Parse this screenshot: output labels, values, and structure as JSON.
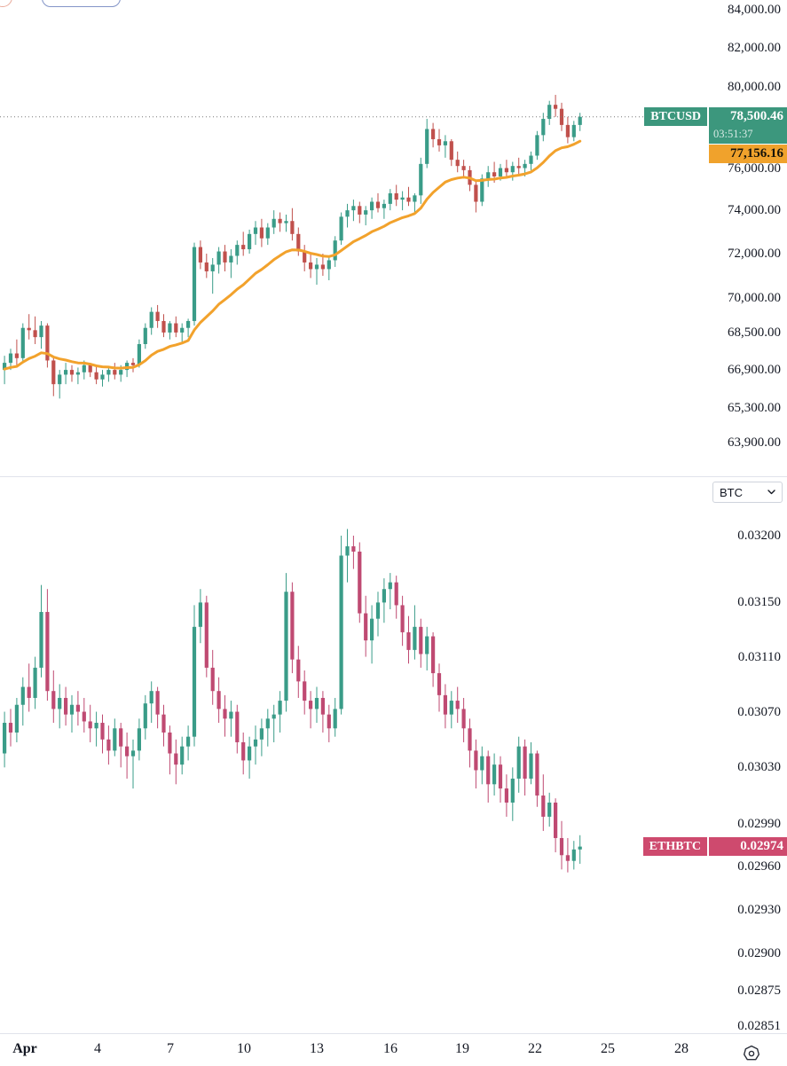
{
  "price_scale_unit_dropdown": {
    "value": "BTC"
  },
  "x_axis": {
    "ticks": [
      {
        "label": "Apr",
        "bold": true
      },
      {
        "label": "4"
      },
      {
        "label": "7"
      },
      {
        "label": "10"
      },
      {
        "label": "13"
      },
      {
        "label": "16"
      },
      {
        "label": "19"
      },
      {
        "label": "22"
      },
      {
        "label": "25"
      },
      {
        "label": "28"
      }
    ]
  },
  "chart_data": [
    {
      "type": "candlestick",
      "symbol": "BTCUSD",
      "panel": "top",
      "scale": "log",
      "last_price": "78,500.46",
      "countdown": "03:51:37",
      "ma_label": "77,156.16",
      "up_color": "#3a9c88",
      "down_color": "#c0504c",
      "ma_color": "#f2a22c",
      "badge_color": "#3c977d",
      "ma_badge_color": "#f0a22c",
      "grid": false,
      "legend_position": "none",
      "y_ticks": [
        {
          "label": "84,000.00",
          "value": 84000
        },
        {
          "label": "82,000.00",
          "value": 82000
        },
        {
          "label": "80,000.00",
          "value": 80000
        },
        {
          "label": "76,000.00",
          "value": 76000
        },
        {
          "label": "74,000.00",
          "value": 74000
        },
        {
          "label": "72,000.00",
          "value": 72000
        },
        {
          "label": "70,000.00",
          "value": 70000
        },
        {
          "label": "68,500.00",
          "value": 68500
        },
        {
          "label": "66,900.00",
          "value": 66900
        },
        {
          "label": "65,300.00",
          "value": 65300
        },
        {
          "label": "63,900.00",
          "value": 63900
        }
      ],
      "first_open": 66900,
      "bars_format": [
        "high",
        "low",
        "close"
      ],
      "bars": [
        [
          67500,
          66300,
          67200
        ],
        [
          67800,
          66900,
          67600
        ],
        [
          68200,
          67100,
          67400
        ],
        [
          68900,
          67200,
          68700
        ],
        [
          69300,
          68200,
          68600
        ],
        [
          69200,
          68000,
          68300
        ],
        [
          69000,
          67800,
          68800
        ],
        [
          68900,
          67000,
          67300
        ],
        [
          67400,
          65800,
          66300
        ],
        [
          66900,
          65700,
          66700
        ],
        [
          67200,
          66300,
          66900
        ],
        [
          67100,
          66400,
          66700
        ],
        [
          67000,
          66300,
          66800
        ],
        [
          67300,
          66500,
          67100
        ],
        [
          67200,
          66600,
          66800
        ],
        [
          67100,
          66300,
          66500
        ],
        [
          66900,
          66200,
          66700
        ],
        [
          67000,
          66400,
          66900
        ],
        [
          67200,
          66500,
          66700
        ],
        [
          67100,
          66400,
          66900
        ],
        [
          67300,
          66600,
          67200
        ],
        [
          67400,
          66800,
          67100
        ],
        [
          68200,
          67000,
          68000
        ],
        [
          68900,
          67800,
          68700
        ],
        [
          69600,
          68400,
          69400
        ],
        [
          69700,
          68700,
          69000
        ],
        [
          69300,
          68300,
          68500
        ],
        [
          69000,
          68200,
          68900
        ],
        [
          69200,
          68300,
          68500
        ],
        [
          68900,
          68100,
          68700
        ],
        [
          69100,
          68300,
          69000
        ],
        [
          72500,
          68800,
          72300
        ],
        [
          72600,
          71300,
          71600
        ],
        [
          72000,
          70900,
          71200
        ],
        [
          71800,
          70200,
          71500
        ],
        [
          72300,
          71100,
          72100
        ],
        [
          72400,
          71200,
          71600
        ],
        [
          72200,
          70900,
          71900
        ],
        [
          72600,
          71500,
          72400
        ],
        [
          73000,
          71900,
          72200
        ],
        [
          73100,
          72000,
          72900
        ],
        [
          73500,
          72400,
          73200
        ],
        [
          73600,
          72300,
          72700
        ],
        [
          73400,
          72400,
          73200
        ],
        [
          74000,
          72900,
          73600
        ],
        [
          73900,
          73000,
          73400
        ],
        [
          73800,
          73000,
          73500
        ],
        [
          74100,
          72600,
          72900
        ],
        [
          73200,
          71900,
          72100
        ],
        [
          72400,
          71200,
          71600
        ],
        [
          72000,
          70900,
          71300
        ],
        [
          71800,
          70600,
          71500
        ],
        [
          72000,
          71000,
          71300
        ],
        [
          71900,
          70800,
          71700
        ],
        [
          72800,
          71400,
          72600
        ],
        [
          73900,
          72400,
          73700
        ],
        [
          74300,
          73200,
          74000
        ],
        [
          74500,
          73500,
          74200
        ],
        [
          74400,
          73400,
          73800
        ],
        [
          74200,
          73300,
          74000
        ],
        [
          74600,
          73600,
          74400
        ],
        [
          74800,
          73900,
          74100
        ],
        [
          74500,
          73600,
          74300
        ],
        [
          75000,
          74000,
          74800
        ],
        [
          75200,
          74200,
          74500
        ],
        [
          74900,
          74000,
          74600
        ],
        [
          75100,
          74200,
          74400
        ],
        [
          74800,
          73900,
          74700
        ],
        [
          76500,
          74300,
          76200
        ],
        [
          78400,
          76000,
          77900
        ],
        [
          78200,
          77000,
          77400
        ],
        [
          77900,
          76800,
          77100
        ],
        [
          77600,
          76500,
          77300
        ],
        [
          77400,
          76100,
          76400
        ],
        [
          76800,
          75800,
          76100
        ],
        [
          76400,
          75500,
          75900
        ],
        [
          76100,
          74900,
          75200
        ],
        [
          75400,
          73900,
          74400
        ],
        [
          75700,
          74200,
          75500
        ],
        [
          76100,
          75100,
          75800
        ],
        [
          76300,
          75300,
          75600
        ],
        [
          76200,
          75400,
          76000
        ],
        [
          76400,
          75500,
          75800
        ],
        [
          76300,
          75400,
          76100
        ],
        [
          76500,
          75700,
          76000
        ],
        [
          76400,
          75600,
          76200
        ],
        [
          76800,
          75900,
          76600
        ],
        [
          77800,
          76400,
          77600
        ],
        [
          78700,
          77300,
          78400
        ],
        [
          79300,
          78100,
          79100
        ],
        [
          79600,
          78500,
          78900
        ],
        [
          79200,
          77800,
          78100
        ],
        [
          78500,
          77200,
          77500
        ],
        [
          78300,
          77300,
          78100
        ],
        [
          78700,
          77800,
          78500.46
        ]
      ]
    },
    {
      "type": "candlestick",
      "symbol": "ETHBTC",
      "panel": "bottom",
      "scale": "log",
      "unit": "BTC",
      "last_price": "0.02974",
      "up_color": "#3a9c88",
      "down_color": "#bf4a72",
      "badge_color": "#ce4a6e",
      "grid": false,
      "legend_position": "none",
      "y_ticks": [
        {
          "label": "0.03200",
          "value": 0.032
        },
        {
          "label": "0.03150",
          "value": 0.0315
        },
        {
          "label": "0.03110",
          "value": 0.0311
        },
        {
          "label": "0.03070",
          "value": 0.0307
        },
        {
          "label": "0.03030",
          "value": 0.0303
        },
        {
          "label": "0.02990",
          "value": 0.0299
        },
        {
          "label": "0.02960",
          "value": 0.0296
        },
        {
          "label": "0.02930",
          "value": 0.0293
        },
        {
          "label": "0.02900",
          "value": 0.029
        },
        {
          "label": "0.02875",
          "value": 0.02875
        },
        {
          "label": "0.02851",
          "value": 0.02851
        }
      ],
      "first_open": 0.0304,
      "bars_format": [
        "high",
        "low",
        "close"
      ],
      "bars": [
        [
          0.0307,
          0.0303,
          0.03062
        ],
        [
          0.03072,
          0.03045,
          0.03055
        ],
        [
          0.0308,
          0.03048,
          0.03075
        ],
        [
          0.03095,
          0.0306,
          0.03088
        ],
        [
          0.03105,
          0.0307,
          0.0308
        ],
        [
          0.0311,
          0.03072,
          0.03102
        ],
        [
          0.03163,
          0.03095,
          0.03143
        ],
        [
          0.0316,
          0.03078,
          0.03085
        ],
        [
          0.031,
          0.03062,
          0.03072
        ],
        [
          0.0309,
          0.03058,
          0.0308
        ],
        [
          0.03088,
          0.0306,
          0.03068
        ],
        [
          0.03082,
          0.03055,
          0.03075
        ],
        [
          0.03085,
          0.0306,
          0.0307
        ],
        [
          0.0308,
          0.03055,
          0.03063
        ],
        [
          0.03075,
          0.03048,
          0.03058
        ],
        [
          0.0307,
          0.03045,
          0.03062
        ],
        [
          0.03068,
          0.0304,
          0.0305
        ],
        [
          0.0306,
          0.03032,
          0.03042
        ],
        [
          0.03065,
          0.03038,
          0.03058
        ],
        [
          0.03062,
          0.0303,
          0.03045
        ],
        [
          0.03055,
          0.03022,
          0.03038
        ],
        [
          0.0305,
          0.03015,
          0.03042
        ],
        [
          0.03065,
          0.03035,
          0.03058
        ],
        [
          0.03082,
          0.0305,
          0.03076
        ],
        [
          0.03092,
          0.03062,
          0.03085
        ],
        [
          0.03088,
          0.03058,
          0.03068
        ],
        [
          0.03075,
          0.03045,
          0.03055
        ],
        [
          0.0306,
          0.03025,
          0.0304
        ],
        [
          0.0305,
          0.03018,
          0.03032
        ],
        [
          0.03052,
          0.03025,
          0.03045
        ],
        [
          0.0306,
          0.03035,
          0.03052
        ],
        [
          0.03148,
          0.03045,
          0.03132
        ],
        [
          0.0316,
          0.0312,
          0.0315
        ],
        [
          0.03155,
          0.03095,
          0.03102
        ],
        [
          0.03115,
          0.03075,
          0.03085
        ],
        [
          0.03095,
          0.03062,
          0.03072
        ],
        [
          0.03082,
          0.03052,
          0.03065
        ],
        [
          0.03078,
          0.03052,
          0.0307
        ],
        [
          0.03075,
          0.0304,
          0.03048
        ],
        [
          0.03055,
          0.03025,
          0.03035
        ],
        [
          0.03052,
          0.03022,
          0.03045
        ],
        [
          0.0306,
          0.03032,
          0.0305
        ],
        [
          0.03065,
          0.03038,
          0.03058
        ],
        [
          0.03072,
          0.03045,
          0.03065
        ],
        [
          0.03075,
          0.03048,
          0.03068
        ],
        [
          0.03085,
          0.03055,
          0.03078
        ],
        [
          0.03172,
          0.0307,
          0.03158
        ],
        [
          0.03165,
          0.03098,
          0.03108
        ],
        [
          0.03118,
          0.0308,
          0.03092
        ],
        [
          0.031,
          0.03068,
          0.03078
        ],
        [
          0.03085,
          0.03058,
          0.03072
        ],
        [
          0.03088,
          0.03062,
          0.0308
        ],
        [
          0.03085,
          0.03055,
          0.03068
        ],
        [
          0.03075,
          0.03048,
          0.03058
        ],
        [
          0.0308,
          0.03052,
          0.03072
        ],
        [
          0.032,
          0.03068,
          0.03185
        ],
        [
          0.03205,
          0.03165,
          0.03192
        ],
        [
          0.032,
          0.03175,
          0.03188
        ],
        [
          0.03195,
          0.03135,
          0.03142
        ],
        [
          0.03155,
          0.0311,
          0.03122
        ],
        [
          0.03148,
          0.03105,
          0.03138
        ],
        [
          0.03158,
          0.03125,
          0.0315
        ],
        [
          0.03168,
          0.03135,
          0.0316
        ],
        [
          0.03172,
          0.03145,
          0.03165
        ],
        [
          0.0317,
          0.03138,
          0.03148
        ],
        [
          0.03155,
          0.03118,
          0.03128
        ],
        [
          0.0314,
          0.03105,
          0.03115
        ],
        [
          0.03148,
          0.03108,
          0.03132
        ],
        [
          0.03138,
          0.03102,
          0.03112
        ],
        [
          0.03132,
          0.031,
          0.03125
        ],
        [
          0.03128,
          0.03088,
          0.03098
        ],
        [
          0.03105,
          0.0307,
          0.03082
        ],
        [
          0.0309,
          0.03058,
          0.03068
        ],
        [
          0.03085,
          0.03058,
          0.03078
        ],
        [
          0.03088,
          0.03062,
          0.03072
        ],
        [
          0.0308,
          0.03048,
          0.03058
        ],
        [
          0.03065,
          0.0303,
          0.03042
        ],
        [
          0.0305,
          0.03015,
          0.03028
        ],
        [
          0.03045,
          0.03018,
          0.03038
        ],
        [
          0.03042,
          0.03005,
          0.03018
        ],
        [
          0.0304,
          0.0301,
          0.03032
        ],
        [
          0.03038,
          0.03005,
          0.03015
        ],
        [
          0.03025,
          0.02995,
          0.03005
        ],
        [
          0.0303,
          0.02992,
          0.03022
        ],
        [
          0.03052,
          0.03012,
          0.03045
        ],
        [
          0.0305,
          0.0301,
          0.03022
        ],
        [
          0.03048,
          0.03018,
          0.0304
        ],
        [
          0.03042,
          0.03002,
          0.0301
        ],
        [
          0.03025,
          0.02985,
          0.02995
        ],
        [
          0.03012,
          0.02988,
          0.03005
        ],
        [
          0.03008,
          0.0297,
          0.0298
        ],
        [
          0.02992,
          0.02958,
          0.02968
        ],
        [
          0.0298,
          0.02956,
          0.02964
        ],
        [
          0.02978,
          0.02958,
          0.02972
        ],
        [
          0.02982,
          0.02962,
          0.02974
        ]
      ]
    }
  ]
}
